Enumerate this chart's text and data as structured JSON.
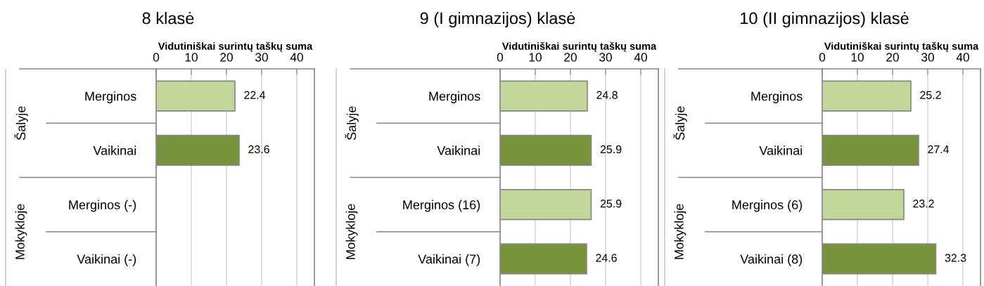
{
  "chart_data": [
    {
      "type": "bar",
      "orientation": "horizontal",
      "title": "8 klasė",
      "xlabel": "Vidutiniškai surintų taškų suma",
      "categories": [
        "Merginos",
        "Vaikinai",
        "Merginos (-)",
        "Vaikinai (-)"
      ],
      "values": [
        22.4,
        23.6,
        null,
        null
      ],
      "colors": [
        "#c4d79b",
        "#77933c",
        "#c4d79b",
        "#77933c"
      ],
      "xlim": [
        0,
        45
      ],
      "xticks": [
        0,
        10,
        20,
        30,
        40
      ],
      "grid": "x",
      "data_labels": true,
      "annotations": [
        "Šalyje",
        "Mokykloje"
      ]
    },
    {
      "type": "bar",
      "orientation": "horizontal",
      "title": "9 (I gimnazijos) klasė",
      "xlabel": "Vidutiniškai surintų taškų suma",
      "categories": [
        "Merginos",
        "Vaikinai",
        "Merginos (16)",
        "Vaikinai (7)"
      ],
      "values": [
        24.8,
        25.9,
        25.9,
        24.6
      ],
      "colors": [
        "#c4d79b",
        "#77933c",
        "#c4d79b",
        "#77933c"
      ],
      "xlim": [
        0,
        45
      ],
      "xticks": [
        0,
        10,
        20,
        30,
        40
      ],
      "grid": "x",
      "data_labels": true,
      "annotations": [
        "Šalyje",
        "Mokykloje"
      ]
    },
    {
      "type": "bar",
      "orientation": "horizontal",
      "title": "10 (II gimnazijos) klasė",
      "xlabel": "Vidutiniškai surintų taškų suma",
      "categories": [
        "Merginos",
        "Vaikinai",
        "Merginos (6)",
        "Vaikinai (8)"
      ],
      "values": [
        25.2,
        27.4,
        23.2,
        32.3
      ],
      "colors": [
        "#c4d79b",
        "#77933c",
        "#c4d79b",
        "#77933c"
      ],
      "xlim": [
        0,
        45
      ],
      "xticks": [
        0,
        10,
        20,
        30,
        40
      ],
      "grid": "x",
      "data_labels": true,
      "annotations": [
        "Šalyje",
        "Mokykloje"
      ]
    }
  ]
}
